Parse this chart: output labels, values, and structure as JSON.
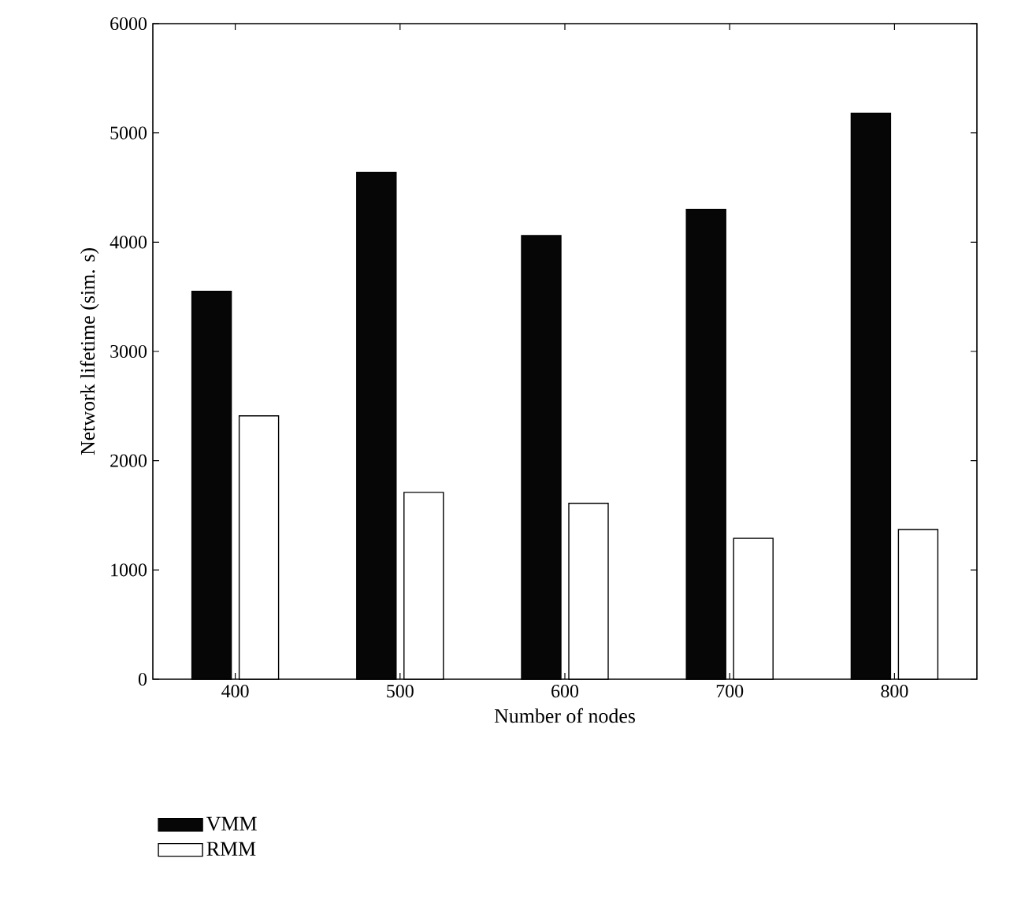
{
  "chart_data": {
    "type": "bar",
    "xlabel": "Number of nodes",
    "ylabel": "Network lifetime (sim. s)",
    "categories": [
      "400",
      "500",
      "600",
      "700",
      "800"
    ],
    "series": [
      {
        "name": "VMM",
        "color": "#060606",
        "values": [
          3550,
          4640,
          4060,
          4300,
          5180
        ]
      },
      {
        "name": "RMM",
        "color": "#ffffff",
        "values": [
          2410,
          1710,
          1610,
          1290,
          1370
        ]
      }
    ],
    "ylim": [
      0,
      6000
    ],
    "yticks": [
      0,
      1000,
      2000,
      3000,
      4000,
      5000,
      6000
    ],
    "grid": false,
    "legend": "bottom left"
  }
}
